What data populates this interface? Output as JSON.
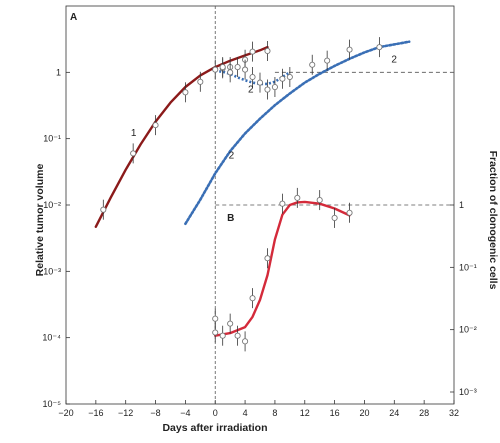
{
  "chart_data": {
    "type": "scatter",
    "xlabel": "Days after irradiation",
    "ylabel_left": "Relative tumor volume",
    "ylabel_right": "Fraction of clonogenic cells",
    "xlim": [
      -20,
      32
    ],
    "x_ticks": [
      "−20",
      "−16",
      "−12",
      "−8",
      "−4",
      "0",
      "4",
      "8",
      "12",
      "16",
      "20",
      "24",
      "28",
      "32"
    ],
    "ylim_left_log10": [
      -5,
      1
    ],
    "y_left_ticks": [
      {
        "exp": 0,
        "label": "1"
      },
      {
        "exp": -1,
        "label": "10⁻¹"
      },
      {
        "exp": -2,
        "label": "10⁻²"
      },
      {
        "exp": -3,
        "label": "10⁻³"
      },
      {
        "exp": -4,
        "label": "10⁻⁴"
      },
      {
        "exp": -5,
        "label": "10⁻⁵"
      }
    ],
    "ylim_right_log10": [
      -3,
      0
    ],
    "y_right_ticks": [
      {
        "exp": 0,
        "label": "1"
      },
      {
        "exp": -1,
        "label": "10⁻¹"
      },
      {
        "exp": -2,
        "label": "10⁻²"
      },
      {
        "exp": -3,
        "label": "10⁻³"
      }
    ],
    "panel_labels": [
      "A",
      "B"
    ],
    "colors": {
      "curve1": "#8b1a1a",
      "curve2": "#3a6fb5",
      "curveB": "#d42a3a",
      "points": "#666666"
    },
    "series": [
      {
        "label": "1",
        "panel": "A",
        "axis": "left",
        "color": "#8b1a1a",
        "curve": [
          [
            -16,
            0.0047
          ],
          [
            -14,
            0.013
          ],
          [
            -12,
            0.034
          ],
          [
            -10,
            0.082
          ],
          [
            -8,
            0.18
          ],
          [
            -6,
            0.35
          ],
          [
            -4,
            0.6
          ],
          [
            -2,
            0.9
          ],
          [
            0,
            1.2
          ],
          [
            2,
            1.5
          ],
          [
            4,
            1.8
          ],
          [
            6,
            2.15
          ],
          [
            7,
            2.4
          ]
        ],
        "points": [
          [
            -15,
            0.0085
          ],
          [
            -11,
            0.06
          ],
          [
            -8,
            0.16
          ],
          [
            -4,
            0.5
          ],
          [
            -2,
            0.72
          ],
          [
            0,
            1.1
          ],
          [
            1,
            1.15
          ],
          [
            2,
            1.2
          ],
          [
            4,
            1.55
          ],
          [
            5,
            2.05
          ],
          [
            7,
            2.1
          ]
        ]
      },
      {
        "label": "2",
        "panel": "A",
        "axis": "left",
        "color": "#3a6fb5",
        "curve": [
          [
            -4,
            0.0052
          ],
          [
            -2,
            0.012
          ],
          [
            0,
            0.03
          ],
          [
            2,
            0.065
          ],
          [
            4,
            0.12
          ],
          [
            6,
            0.2
          ],
          [
            8,
            0.32
          ],
          [
            10,
            0.48
          ],
          [
            12,
            0.7
          ],
          [
            14,
            0.95
          ],
          [
            16,
            1.25
          ],
          [
            18,
            1.6
          ],
          [
            20,
            2.0
          ],
          [
            22,
            2.4
          ],
          [
            26,
            2.9
          ]
        ],
        "dip_curve": [
          [
            0,
            1.05
          ],
          [
            1,
            1.02
          ],
          [
            2,
            0.95
          ],
          [
            3,
            0.84
          ],
          [
            4,
            0.76
          ],
          [
            5,
            0.7
          ],
          [
            6,
            0.67
          ],
          [
            7,
            0.67
          ],
          [
            8,
            0.72
          ],
          [
            9,
            0.85
          ],
          [
            10,
            1.0
          ]
        ],
        "points": [
          [
            1,
            1.2
          ],
          [
            2,
            1.0
          ],
          [
            3,
            1.2
          ],
          [
            4,
            1.1
          ],
          [
            5,
            0.85
          ],
          [
            6,
            0.7
          ],
          [
            7,
            0.55
          ],
          [
            8,
            0.6
          ],
          [
            9,
            0.8
          ],
          [
            10,
            0.85
          ],
          [
            13,
            1.3
          ],
          [
            15,
            1.5
          ],
          [
            18,
            2.2
          ],
          [
            22,
            2.4
          ]
        ]
      },
      {
        "label": "B",
        "panel": "B",
        "axis": "right",
        "color": "#d42a3a",
        "curve": [
          [
            0,
            0.008
          ],
          [
            2,
            0.0088
          ],
          [
            4,
            0.011
          ],
          [
            5,
            0.016
          ],
          [
            6,
            0.03
          ],
          [
            7,
            0.075
          ],
          [
            8,
            0.28
          ],
          [
            9,
            0.7
          ],
          [
            10,
            1.0
          ],
          [
            11,
            1.1
          ],
          [
            12,
            1.12
          ],
          [
            14,
            1.05
          ],
          [
            16,
            0.88
          ],
          [
            18,
            0.68
          ]
        ],
        "points": [
          [
            0,
            0.015
          ],
          [
            0,
            0.009
          ],
          [
            1,
            0.008
          ],
          [
            2,
            0.0125
          ],
          [
            3,
            0.008
          ],
          [
            4,
            0.0065
          ],
          [
            5,
            0.032
          ],
          [
            7,
            0.14
          ],
          [
            9,
            1.05
          ],
          [
            11,
            1.3
          ],
          [
            14,
            1.2
          ],
          [
            16,
            0.62
          ],
          [
            18,
            0.75
          ]
        ]
      }
    ],
    "reference_lines": [
      {
        "panel": "A",
        "axis": "left",
        "y": 1,
        "x_from": 8,
        "x_to": 32,
        "style": "dashed"
      },
      {
        "panel": "B",
        "axis": "right",
        "y": 1,
        "x_from": 0,
        "x_to": 32,
        "style": "dashed"
      },
      {
        "axis": "x",
        "x": 0,
        "style": "dashed",
        "orientation": "vertical"
      }
    ]
  }
}
